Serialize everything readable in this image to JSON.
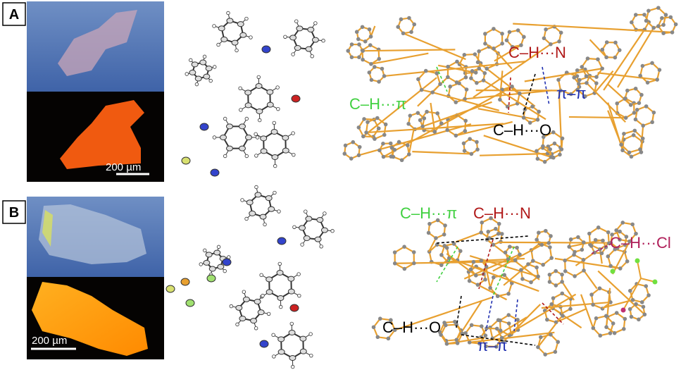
{
  "panels": [
    {
      "label": "A",
      "scale_bar": "200 µm",
      "interactions": [
        "C–H···N",
        "π–π",
        "C–H···π",
        "C–H···O"
      ]
    },
    {
      "label": "B",
      "scale_bar": "200 µm",
      "interactions": [
        "C–H···π",
        "C–H···N",
        "C–H···Cl",
        "C–H···O",
        "π–π"
      ]
    }
  ]
}
